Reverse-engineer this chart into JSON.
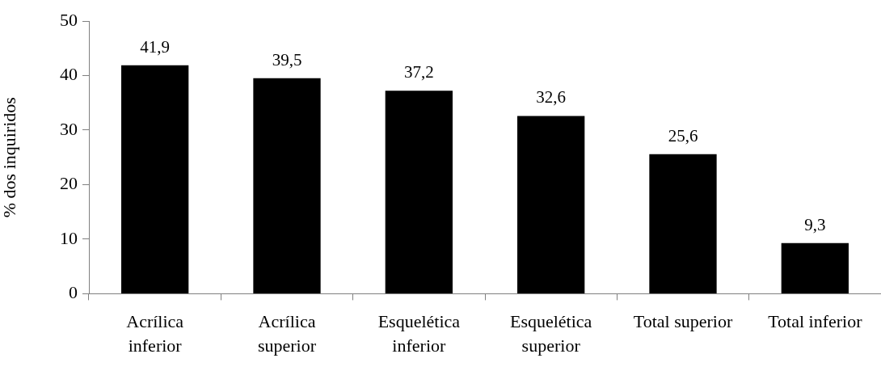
{
  "chart_data": {
    "type": "bar",
    "ylabel": "% dos inquiridos",
    "categories": [
      "Acrílica inferior",
      "Acrílica superior",
      "Esquelética inferior",
      "Esquelética superior",
      "Total superior",
      "Total inferior"
    ],
    "values": [
      41.9,
      39.5,
      37.2,
      32.6,
      25.6,
      9.3
    ],
    "value_labels": [
      "41,9",
      "39,5",
      "37,2",
      "32,6",
      "25,6",
      "9,3"
    ],
    "color": "#000000",
    "ylim": [
      0,
      50
    ],
    "yticks": [
      0,
      10,
      20,
      30,
      40,
      50
    ],
    "grid": false,
    "legend": false
  }
}
